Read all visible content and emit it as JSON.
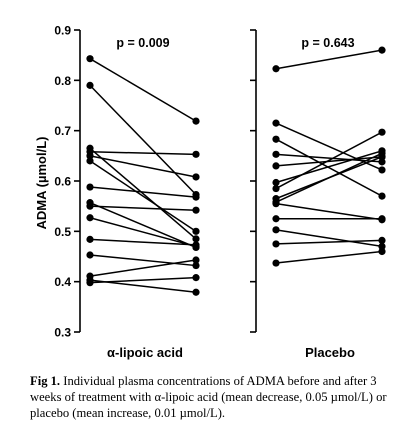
{
  "chart_data": {
    "type": "line",
    "ylabel": "ADMA (µmol/L)",
    "ylim": [
      0.3,
      0.9
    ],
    "yticks": [
      "0.3",
      "0.4",
      "0.5",
      "0.6",
      "0.7",
      "0.8",
      "0.9"
    ],
    "panels": [
      {
        "label": "α-lipoic acid",
        "annotation": "p = 0.009",
        "pairs": [
          [
            0.843,
            0.719
          ],
          [
            0.79,
            0.573
          ],
          [
            0.665,
            0.485
          ],
          [
            0.658,
            0.653
          ],
          [
            0.65,
            0.608
          ],
          [
            0.64,
            0.5
          ],
          [
            0.588,
            0.568
          ],
          [
            0.557,
            0.468
          ],
          [
            0.55,
            0.542
          ],
          [
            0.527,
            0.47
          ],
          [
            0.484,
            0.473
          ],
          [
            0.453,
            0.432
          ],
          [
            0.411,
            0.443
          ],
          [
            0.403,
            0.379
          ],
          [
            0.398,
            0.408
          ]
        ]
      },
      {
        "label": "Placebo",
        "annotation": "p = 0.643",
        "pairs": [
          [
            0.823,
            0.86
          ],
          [
            0.715,
            0.622
          ],
          [
            0.683,
            0.57
          ],
          [
            0.653,
            0.638
          ],
          [
            0.63,
            0.648
          ],
          [
            0.597,
            0.66
          ],
          [
            0.585,
            0.697
          ],
          [
            0.565,
            0.648
          ],
          [
            0.558,
            0.655
          ],
          [
            0.525,
            0.525
          ],
          [
            0.503,
            0.47
          ],
          [
            0.475,
            0.482
          ],
          [
            0.437,
            0.46
          ],
          [
            0.555,
            0.523
          ]
        ]
      }
    ]
  },
  "caption": {
    "label": "Fig 1.",
    "text": "Individual plasma concentrations of ADMA before and after 3 weeks of treatment with α-lipoic acid (mean decrease, 0.05 µmol/L) or placebo (mean increase, 0.01 µmol/L)."
  }
}
